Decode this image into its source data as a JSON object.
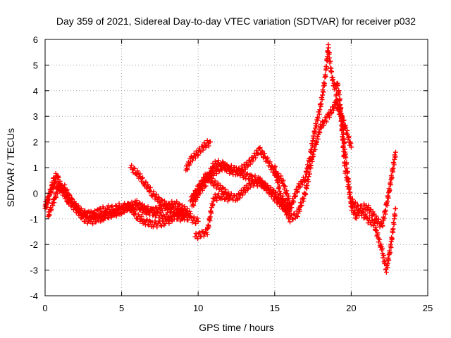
{
  "chart_data": {
    "type": "scatter",
    "title": "Day 359 of 2021, Sidereal Day-to-day VTEC variation (SDTVAR) for receiver p032",
    "xlabel": "GPS time / hours",
    "ylabel": "SDTVAR / TECUs",
    "xlim": [
      0,
      25
    ],
    "ylim": [
      -4,
      6
    ],
    "xticks": [
      "0",
      "5",
      "10",
      "15",
      "20",
      "25"
    ],
    "yticks": [
      "-4",
      "-3",
      "-2",
      "-1",
      "0",
      "1",
      "2",
      "3",
      "4",
      "5",
      "6"
    ],
    "grid": true,
    "marker": "plus",
    "color": "#ff0000",
    "series": [
      {
        "name": "trace-a",
        "x": [
          0.0,
          0.2,
          0.4,
          0.6,
          0.8,
          1.0,
          1.3,
          1.6,
          2.0,
          2.5,
          3.0,
          3.5,
          4.0,
          4.5,
          5.0,
          5.5,
          6.0,
          6.5,
          7.0,
          7.5,
          8.0,
          8.5,
          9.0,
          9.5
        ],
        "y": [
          -0.6,
          -0.3,
          0.2,
          0.6,
          0.7,
          0.3,
          0.0,
          -0.2,
          -0.5,
          -0.8,
          -0.9,
          -0.7,
          -0.6,
          -0.6,
          -0.5,
          -0.5,
          -0.4,
          -0.6,
          -0.7,
          -0.6,
          -0.5,
          -0.4,
          -0.6,
          -0.8
        ]
      },
      {
        "name": "trace-b",
        "x": [
          0.0,
          0.3,
          0.6,
          1.0,
          1.5,
          2.0,
          2.5,
          3.0,
          3.5,
          4.0,
          4.5,
          5.0,
          5.5,
          6.0,
          6.5,
          7.0,
          7.5,
          8.0,
          8.5,
          9.0
        ],
        "y": [
          -0.5,
          0.0,
          0.4,
          0.2,
          -0.3,
          -0.6,
          -1.0,
          -1.1,
          -1.0,
          -0.9,
          -0.8,
          -0.7,
          -0.5,
          -0.9,
          -1.1,
          -1.2,
          -1.2,
          -1.1,
          -0.9,
          -1.0
        ]
      },
      {
        "name": "trace-c",
        "x": [
          0.2,
          0.5,
          0.8,
          1.2,
          1.8,
          2.4,
          3.0,
          3.6,
          4.2,
          4.8,
          5.4,
          6.0,
          6.6,
          7.2,
          7.8,
          8.4,
          9.0,
          9.3
        ],
        "y": [
          -0.9,
          -0.4,
          0.1,
          0.3,
          -0.4,
          -0.8,
          -0.8,
          -1.0,
          -0.8,
          -0.7,
          -0.6,
          -0.5,
          -0.7,
          -0.8,
          -0.9,
          -0.8,
          -0.7,
          -0.8
        ]
      },
      {
        "name": "trace-d",
        "x": [
          5.6,
          6.0,
          6.5,
          7.0,
          7.5,
          8.0,
          8.5,
          9.0,
          9.5,
          10.0
        ],
        "y": [
          1.0,
          0.8,
          0.4,
          0.0,
          -0.3,
          -0.5,
          -0.7,
          -0.9,
          -1.0,
          -1.1
        ]
      },
      {
        "name": "trace-e",
        "x": [
          9.2,
          9.5,
          10.0,
          10.5,
          10.8
        ],
        "y": [
          0.9,
          1.3,
          1.6,
          1.9,
          2.0
        ]
      },
      {
        "name": "trace-f",
        "x": [
          9.5,
          10.0,
          10.5,
          11.0,
          11.5,
          12.0,
          12.5,
          13.0,
          13.5,
          14.0,
          14.5,
          15.0,
          15.5,
          16.0
        ],
        "y": [
          -0.3,
          0.2,
          0.6,
          0.8,
          1.0,
          1.0,
          0.9,
          0.7,
          0.6,
          0.5,
          0.2,
          -0.2,
          -0.5,
          -0.8
        ]
      },
      {
        "name": "trace-g",
        "x": [
          9.6,
          10.0,
          10.5,
          11.0,
          11.5,
          12.0,
          12.5,
          13.0,
          13.5,
          14.0,
          14.5,
          15.0,
          15.5,
          16.0
        ],
        "y": [
          -0.5,
          0.0,
          0.4,
          1.1,
          1.2,
          0.9,
          0.8,
          1.0,
          1.3,
          1.7,
          1.3,
          0.8,
          0.5,
          -0.4
        ]
      },
      {
        "name": "trace-h",
        "x": [
          9.7,
          10.0,
          10.5,
          11.0,
          11.5,
          12.0,
          12.5,
          13.0,
          13.5,
          14.0,
          14.5,
          15.0,
          15.5,
          16.0
        ],
        "y": [
          -0.2,
          0.1,
          0.7,
          0.4,
          0.2,
          -0.1,
          -0.2,
          0.1,
          0.4,
          0.4,
          0.2,
          0.0,
          -0.4,
          -0.6
        ]
      },
      {
        "name": "trace-i",
        "x": [
          9.8,
          10.2,
          10.6,
          11.0,
          11.5,
          12.0
        ],
        "y": [
          -1.7,
          -1.6,
          -1.5,
          -0.2,
          -0.1,
          -0.2
        ]
      },
      {
        "name": "trace-j",
        "x": [
          15.0,
          15.5,
          16.0,
          16.5,
          17.0,
          17.5,
          18.0,
          18.5,
          19.0,
          19.5,
          20.0
        ],
        "y": [
          1.0,
          -0.4,
          -1.0,
          -0.8,
          0.0,
          1.5,
          2.6,
          3.0,
          3.5,
          2.8,
          1.8
        ]
      },
      {
        "name": "trace-k",
        "x": [
          15.5,
          16.0,
          16.5,
          17.0,
          17.3,
          17.6,
          18.0,
          18.3,
          18.5,
          18.7,
          18.9,
          19.1,
          19.3,
          19.6,
          20.0,
          20.3,
          20.6,
          21.0,
          21.5,
          22.0,
          22.3,
          22.6,
          22.9
        ],
        "y": [
          -0.2,
          -0.6,
          0.2,
          0.6,
          1.4,
          2.4,
          3.4,
          4.5,
          5.7,
          4.7,
          4.1,
          4.3,
          3.4,
          1.6,
          -0.5,
          -0.9,
          -0.7,
          -1.0,
          -1.2,
          -2.2,
          -3.0,
          -2.0,
          -0.6
        ]
      },
      {
        "name": "trace-l",
        "x": [
          19.0,
          19.3,
          19.6,
          20.0,
          20.5,
          21.0,
          21.5,
          22.0,
          22.3,
          22.6,
          22.9
        ],
        "y": [
          3.8,
          3.2,
          0.9,
          -0.3,
          -0.6,
          -0.5,
          -0.9,
          -1.3,
          -0.5,
          0.5,
          1.6
        ]
      }
    ]
  }
}
